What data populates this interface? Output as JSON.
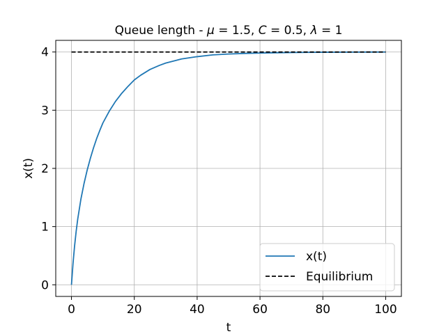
{
  "chart_data": {
    "type": "line",
    "title": {
      "prefix": "Queue length - ",
      "params": [
        {
          "symbol": "μ",
          "value": "1.5"
        },
        {
          "symbol": "C",
          "value": "0.5"
        },
        {
          "symbol": "λ",
          "value": "1"
        }
      ]
    },
    "xlabel": "t",
    "ylabel": "x(t)",
    "xlim": [
      -5,
      105
    ],
    "ylim": [
      -0.2,
      4.2
    ],
    "xticks": [
      0,
      20,
      40,
      60,
      80,
      100
    ],
    "yticks": [
      0,
      1,
      2,
      3,
      4
    ],
    "grid": true,
    "legend": {
      "position": "bottom-right"
    },
    "series": [
      {
        "name": "x(t)",
        "color": "#1f77b4",
        "style": "solid",
        "x": [
          0,
          0.5,
          1,
          1.5,
          2,
          3,
          4,
          5,
          6,
          7,
          8,
          9,
          10,
          12,
          14,
          16,
          18,
          20,
          22,
          25,
          28,
          30,
          35,
          40,
          45,
          50,
          55,
          60,
          65,
          70,
          75,
          80,
          85,
          90,
          95,
          100
        ],
        "y": [
          0,
          0.37,
          0.67,
          0.92,
          1.13,
          1.47,
          1.74,
          1.97,
          2.17,
          2.35,
          2.51,
          2.65,
          2.78,
          2.98,
          3.15,
          3.29,
          3.41,
          3.52,
          3.6,
          3.7,
          3.77,
          3.81,
          3.88,
          3.92,
          3.95,
          3.965,
          3.975,
          3.982,
          3.987,
          3.991,
          3.994,
          3.996,
          3.997,
          3.998,
          3.999,
          4.0
        ]
      },
      {
        "name": "Equilibrium",
        "color": "#000000",
        "style": "dashed",
        "x": [
          0,
          100
        ],
        "y": [
          4,
          4
        ]
      }
    ]
  }
}
